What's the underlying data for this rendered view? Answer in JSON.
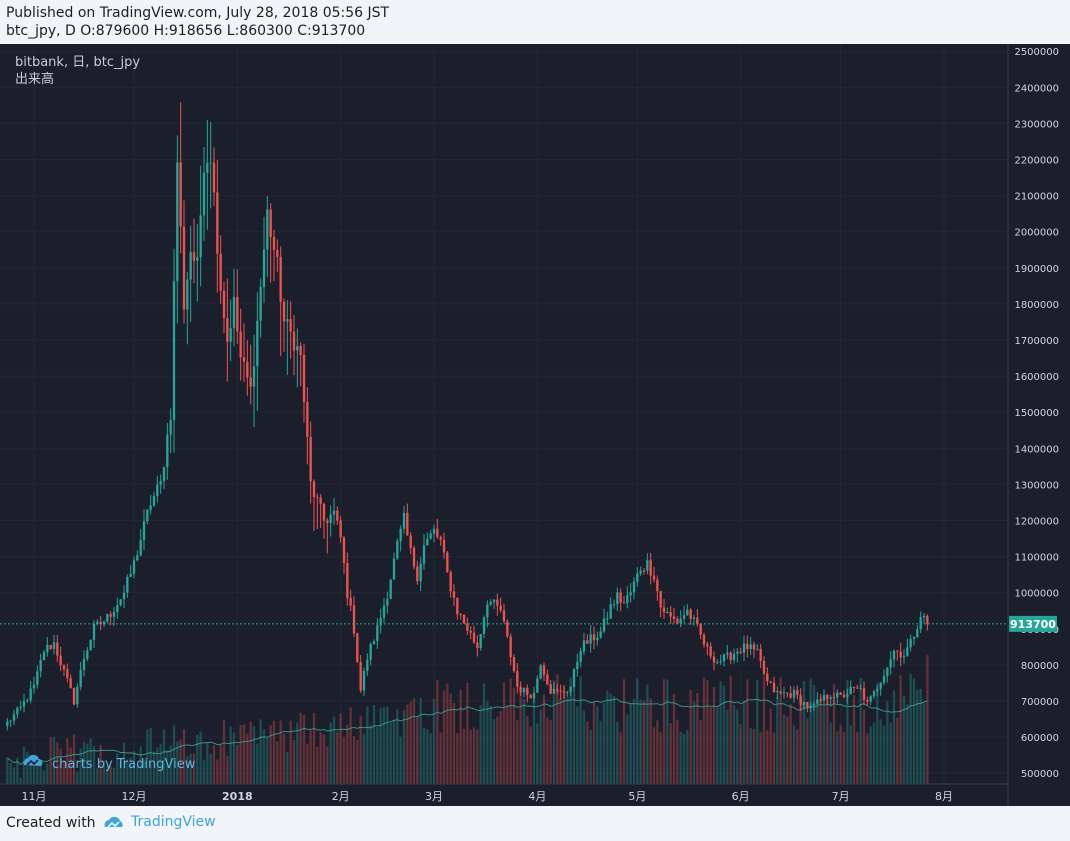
{
  "header": {
    "line1": "Published on TradingView.com, July 28, 2018 05:56 JST",
    "line2": "btc_jpy, D O:879600 H:918656 L:860300 C:913700"
  },
  "legend": {
    "symbol": "bitbank, 日, btc_jpy",
    "indicator": "出来高"
  },
  "watermark": "charts by TradingView",
  "footer": {
    "created_with": "Created with",
    "brand": "TradingView"
  },
  "colors": {
    "background": "#1b1f2b",
    "up": "#26a69a",
    "down": "#ef5350",
    "price_line": "#26a69a",
    "volume_ma": "#3fae9e",
    "axis_text": "#d1d4dc",
    "brand": "#3fa4d8"
  },
  "chart_data": {
    "type": "candlestick",
    "symbol": "btc_jpy",
    "exchange": "bitbank",
    "interval": "日",
    "y_ticks": [
      500000,
      600000,
      700000,
      800000,
      900000,
      1000000,
      1100000,
      1200000,
      1300000,
      1400000,
      1500000,
      1600000,
      1700000,
      1800000,
      1900000,
      2000000,
      2100000,
      2200000,
      2300000,
      2400000,
      2500000
    ],
    "y_tick_labels": [
      "500000",
      "600000",
      "700000",
      "800000",
      "900000",
      "1000000",
      "1100000",
      "1200000",
      "1300000",
      "1400000",
      "1500000",
      "1600000",
      "1700000",
      "1800000",
      "1900000",
      "2000000",
      "2100000",
      "2200000",
      "2300000",
      "2400000",
      "2500000"
    ],
    "ylim": [
      470000,
      2520000
    ],
    "x_ticks": [
      {
        "label": "11月",
        "day": 0
      },
      {
        "label": "12月",
        "day": 30
      },
      {
        "label": "2018",
        "day": 61
      },
      {
        "label": "2月",
        "day": 92
      },
      {
        "label": "3月",
        "day": 120
      },
      {
        "label": "4月",
        "day": 151
      },
      {
        "label": "5月",
        "day": 181
      },
      {
        "label": "6月",
        "day": 212
      },
      {
        "label": "7月",
        "day": 242
      },
      {
        "label": "8月",
        "day": 273
      }
    ],
    "last_price": 913700,
    "last_price_label": "913700",
    "anchors": [
      [
        -8,
        640000
      ],
      [
        -4,
        680000
      ],
      [
        0,
        740000
      ],
      [
        3,
        840000
      ],
      [
        6,
        860000
      ],
      [
        9,
        780000
      ],
      [
        12,
        700000
      ],
      [
        15,
        820000
      ],
      [
        18,
        900000
      ],
      [
        22,
        930000
      ],
      [
        27,
        1000000
      ],
      [
        30,
        1080000
      ],
      [
        35,
        1250000
      ],
      [
        38,
        1300000
      ],
      [
        41,
        1500000
      ],
      [
        43,
        2200000
      ],
      [
        45,
        1800000
      ],
      [
        47,
        1950000
      ],
      [
        49,
        1900000
      ],
      [
        51,
        2200000
      ],
      [
        53,
        2220000
      ],
      [
        56,
        1850000
      ],
      [
        58,
        1700000
      ],
      [
        60,
        1800000
      ],
      [
        62,
        1650000
      ],
      [
        65,
        1560000
      ],
      [
        67,
        1750000
      ],
      [
        70,
        2050000
      ],
      [
        73,
        1900000
      ],
      [
        75,
        1750000
      ],
      [
        78,
        1700000
      ],
      [
        80,
        1650000
      ],
      [
        83,
        1300000
      ],
      [
        85,
        1250000
      ],
      [
        87,
        1200000
      ],
      [
        90,
        1220000
      ],
      [
        92,
        1150000
      ],
      [
        94,
        1000000
      ],
      [
        96,
        900000
      ],
      [
        98,
        730000
      ],
      [
        100,
        820000
      ],
      [
        103,
        900000
      ],
      [
        106,
        1000000
      ],
      [
        109,
        1130000
      ],
      [
        111,
        1200000
      ],
      [
        113,
        1110000
      ],
      [
        115,
        1050000
      ],
      [
        117,
        1130000
      ],
      [
        120,
        1170000
      ],
      [
        122,
        1140000
      ],
      [
        124,
        1050000
      ],
      [
        127,
        950000
      ],
      [
        130,
        900000
      ],
      [
        133,
        850000
      ],
      [
        136,
        980000
      ],
      [
        140,
        950000
      ],
      [
        142,
        870000
      ],
      [
        145,
        740000
      ],
      [
        148,
        720000
      ],
      [
        150,
        720000
      ],
      [
        152,
        810000
      ],
      [
        155,
        730000
      ],
      [
        158,
        720000
      ],
      [
        161,
        740000
      ],
      [
        164,
        850000
      ],
      [
        167,
        870000
      ],
      [
        170,
        890000
      ],
      [
        173,
        960000
      ],
      [
        175,
        990000
      ],
      [
        177,
        970000
      ],
      [
        179,
        1000000
      ],
      [
        182,
        1070000
      ],
      [
        184,
        1080000
      ],
      [
        186,
        1050000
      ],
      [
        188,
        960000
      ],
      [
        191,
        930000
      ],
      [
        193,
        920000
      ],
      [
        196,
        950000
      ],
      [
        199,
        900000
      ],
      [
        202,
        840000
      ],
      [
        205,
        810000
      ],
      [
        208,
        820000
      ],
      [
        211,
        840000
      ],
      [
        214,
        850000
      ],
      [
        217,
        830000
      ],
      [
        220,
        750000
      ],
      [
        223,
        720000
      ],
      [
        226,
        720000
      ],
      [
        228,
        720000
      ],
      [
        230,
        700000
      ],
      [
        233,
        680000
      ],
      [
        236,
        700000
      ],
      [
        239,
        720000
      ],
      [
        242,
        710000
      ],
      [
        245,
        730000
      ],
      [
        248,
        730000
      ],
      [
        250,
        690000
      ],
      [
        252,
        720000
      ],
      [
        255,
        780000
      ],
      [
        258,
        840000
      ],
      [
        261,
        830000
      ],
      [
        263,
        860000
      ],
      [
        266,
        940000
      ],
      [
        268,
        913700
      ]
    ]
  }
}
